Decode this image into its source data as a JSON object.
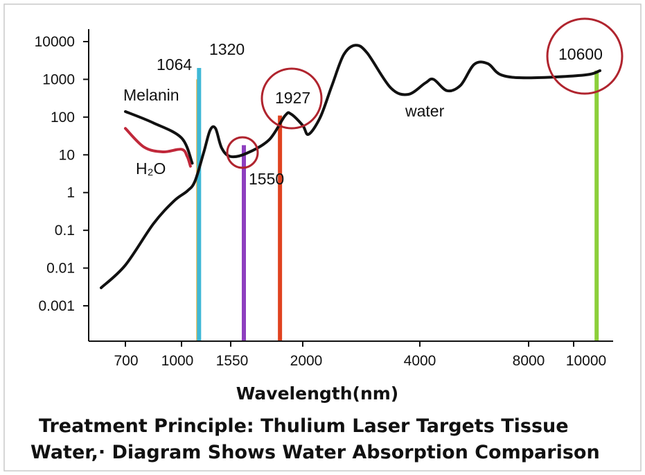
{
  "chart_data": {
    "type": "line",
    "title": "",
    "xlabel": "Wavelength(nm)",
    "ylabel": "",
    "y_scale": "log",
    "ylim": [
      0.001,
      10000
    ],
    "y_ticks": [
      "10000",
      "1000",
      "100",
      "10",
      "1",
      "0.1",
      "0.01",
      "0.001"
    ],
    "x_ticks": [
      "700",
      "1000",
      "1550",
      "2000",
      "4000",
      "8000",
      "10000"
    ],
    "grid": false,
    "series": [
      {
        "name": "water",
        "color": "#111111",
        "points": [
          [
            550,
            0.003
          ],
          [
            700,
            0.012
          ],
          [
            850,
            0.15
          ],
          [
            960,
            0.6
          ],
          [
            1064,
            1.1
          ],
          [
            1150,
            2
          ],
          [
            1250,
            12
          ],
          [
            1320,
            45
          ],
          [
            1380,
            50
          ],
          [
            1450,
            15
          ],
          [
            1550,
            9
          ],
          [
            1650,
            11
          ],
          [
            1790,
            25
          ],
          [
            1890,
            110
          ],
          [
            1927,
            120
          ],
          [
            2000,
            60
          ],
          [
            2100,
            35
          ],
          [
            2300,
            100
          ],
          [
            2500,
            700
          ],
          [
            2700,
            4500
          ],
          [
            2900,
            8000
          ],
          [
            3100,
            5000
          ],
          [
            3500,
            600
          ],
          [
            3800,
            400
          ],
          [
            4200,
            800
          ],
          [
            4500,
            1000
          ],
          [
            5000,
            500
          ],
          [
            5500,
            700
          ],
          [
            6000,
            2500
          ],
          [
            6500,
            2600
          ],
          [
            7000,
            1300
          ],
          [
            8000,
            1100
          ],
          [
            10600,
            1300
          ],
          [
            11500,
            1700
          ]
        ]
      },
      {
        "name": "Melanin",
        "color": "#111111",
        "points": [
          [
            700,
            140
          ],
          [
            850,
            70
          ],
          [
            1000,
            28
          ],
          [
            1120,
            6
          ]
        ]
      },
      {
        "name": "H₂O",
        "color": "#c0283a",
        "points": [
          [
            700,
            50
          ],
          [
            800,
            16
          ],
          [
            900,
            12
          ],
          [
            1000,
            14
          ],
          [
            1064,
            9
          ],
          [
            1100,
            5
          ]
        ]
      }
    ],
    "laser_lines": [
      {
        "wavelength": "1064",
        "x": 1064,
        "value": 1000,
        "color": "#f0b23a"
      },
      {
        "wavelength": "1320",
        "x": 1320,
        "value": 2000,
        "color": "#3fb8d6"
      },
      {
        "wavelength": "1550",
        "x": 1550,
        "value": 18,
        "color": "#8e3fbf"
      },
      {
        "wavelength": "1927",
        "x": 1927,
        "value": 110,
        "color": "#e0421f"
      },
      {
        "wavelength": "10600",
        "x": 10600,
        "value": 1700,
        "color": "#8ccf3a"
      }
    ],
    "highlight_circles": [
      "1550",
      "1927",
      "10600"
    ],
    "annotations": {
      "melanin": "Melanin",
      "h2o": "H₂O",
      "water": "water"
    }
  },
  "caption": {
    "line1": "Treatment Principle: Thulium Laser  Targets Tissue",
    "line2": "Water,·  Diagram Shows Water Absorption Comparison"
  }
}
